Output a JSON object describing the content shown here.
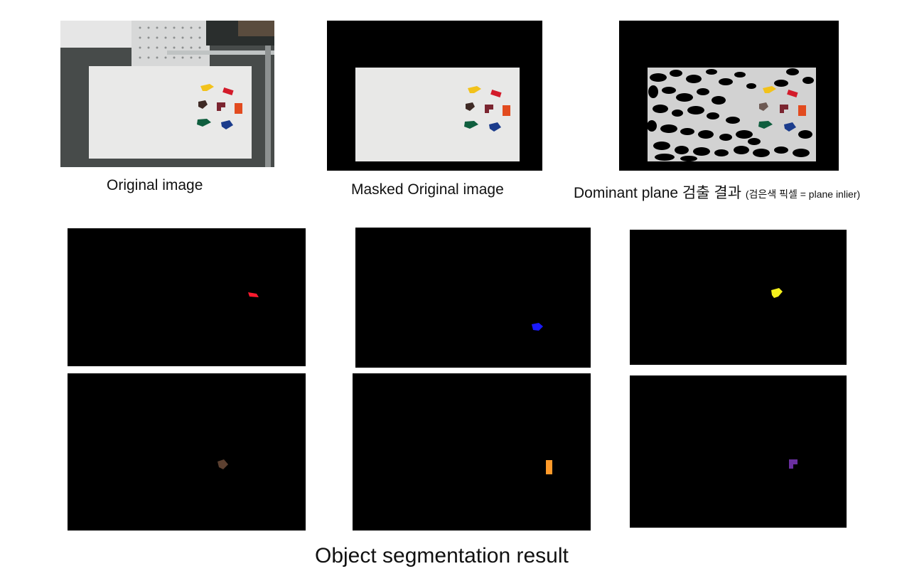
{
  "top_row": {
    "original": {
      "caption": "Original image"
    },
    "masked": {
      "caption": "Masked Original image"
    },
    "plane": {
      "caption": "Dominant plane 검출 결과",
      "caption_note": "(검은색 픽셀 = plane inlier)"
    }
  },
  "bottom_caption": "Object segmentation result",
  "segments": [
    {
      "color": "#ff1a2e"
    },
    {
      "color": "#1a1aff"
    },
    {
      "color": "#f4f01c"
    },
    {
      "color": "#5c4030"
    },
    {
      "color": "#ff9a2a"
    },
    {
      "color": "#6a2fa0"
    }
  ],
  "block_colors": {
    "yellow": "#f2c21b",
    "red": "#d31b2a",
    "brown": "#3e2a25",
    "maroon": "#7b2530",
    "orange": "#e24b1f",
    "green": "#0f5e3e",
    "blue": "#1b3c8c"
  }
}
